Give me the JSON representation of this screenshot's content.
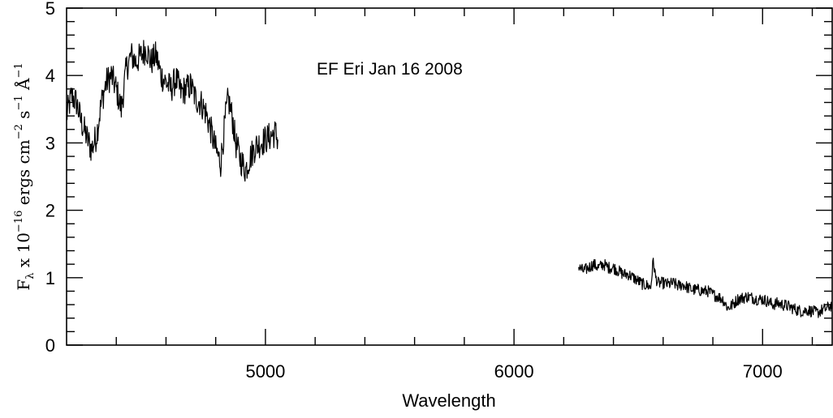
{
  "chart_data": {
    "type": "line",
    "title": "",
    "annotation": "EF Eri Jan 16 2008",
    "xlabel": "Wavelength",
    "ylabel": {
      "symbol": "F",
      "subscript": "λ",
      "text": " x 10",
      "exponent": "−16",
      "units": " ergs cm",
      "units_exp1": "−2",
      "units_s": " s",
      "units_exp2": "−1",
      "units_a": " Å",
      "units_exp3": "−1"
    },
    "xlim": [
      4200,
      7280
    ],
    "ylim": [
      0,
      5
    ],
    "x_ticks": [
      5000,
      6000,
      7000
    ],
    "x_tick_labels": [
      "5000",
      "6000",
      "7000"
    ],
    "y_ticks": [
      0,
      1,
      2,
      3,
      4,
      5
    ],
    "y_tick_labels": [
      "0",
      "1",
      "2",
      "3",
      "4",
      "5"
    ],
    "grid": false,
    "legend": "none",
    "line_color": "#000000",
    "series": [
      {
        "segment": "blue",
        "x": [
          4200,
          4220,
          4240,
          4260,
          4280,
          4300,
          4320,
          4340,
          4360,
          4380,
          4400,
          4420,
          4440,
          4460,
          4480,
          4500,
          4520,
          4540,
          4560,
          4580,
          4600,
          4620,
          4640,
          4660,
          4680,
          4700,
          4720,
          4740,
          4760,
          4780,
          4800,
          4820,
          4840,
          4850,
          4860,
          4870,
          4880,
          4900,
          4920,
          4940,
          4960,
          4980,
          5000,
          5020,
          5040,
          5050
        ],
        "y": [
          3.4,
          3.7,
          3.6,
          3.3,
          3.1,
          2.9,
          3.1,
          3.6,
          3.9,
          4.0,
          3.8,
          3.5,
          4.1,
          4.3,
          4.2,
          4.3,
          4.4,
          4.2,
          4.3,
          4.0,
          3.9,
          3.8,
          3.95,
          3.75,
          3.8,
          3.85,
          3.65,
          3.6,
          3.45,
          3.2,
          2.9,
          2.7,
          3.4,
          3.65,
          3.5,
          3.3,
          3.0,
          2.75,
          2.6,
          2.8,
          2.95,
          3.0,
          3.05,
          3.1,
          3.15,
          3.05
        ]
      },
      {
        "segment": "red",
        "x": [
          6260,
          6280,
          6300,
          6320,
          6340,
          6360,
          6380,
          6400,
          6420,
          6440,
          6460,
          6480,
          6500,
          6520,
          6540,
          6550,
          6560,
          6570,
          6580,
          6600,
          6620,
          6640,
          6660,
          6680,
          6700,
          6720,
          6740,
          6760,
          6780,
          6800,
          6820,
          6840,
          6860,
          6880,
          6900,
          6920,
          6940,
          6960,
          6980,
          7000,
          7020,
          7040,
          7060,
          7080,
          7100,
          7120,
          7140,
          7160,
          7180,
          7200,
          7220,
          7240,
          7260,
          7280
        ],
        "y": [
          1.15,
          1.1,
          1.15,
          1.2,
          1.15,
          1.2,
          1.15,
          1.15,
          1.1,
          1.05,
          1.05,
          1.0,
          0.95,
          0.9,
          0.88,
          0.85,
          1.25,
          1.0,
          0.92,
          0.92,
          0.9,
          0.92,
          0.88,
          0.9,
          0.85,
          0.82,
          0.82,
          0.8,
          0.8,
          0.75,
          0.72,
          0.68,
          0.55,
          0.6,
          0.68,
          0.7,
          0.72,
          0.7,
          0.68,
          0.68,
          0.65,
          0.6,
          0.62,
          0.6,
          0.58,
          0.55,
          0.52,
          0.5,
          0.52,
          0.5,
          0.48,
          0.52,
          0.55,
          0.6
        ]
      }
    ]
  }
}
